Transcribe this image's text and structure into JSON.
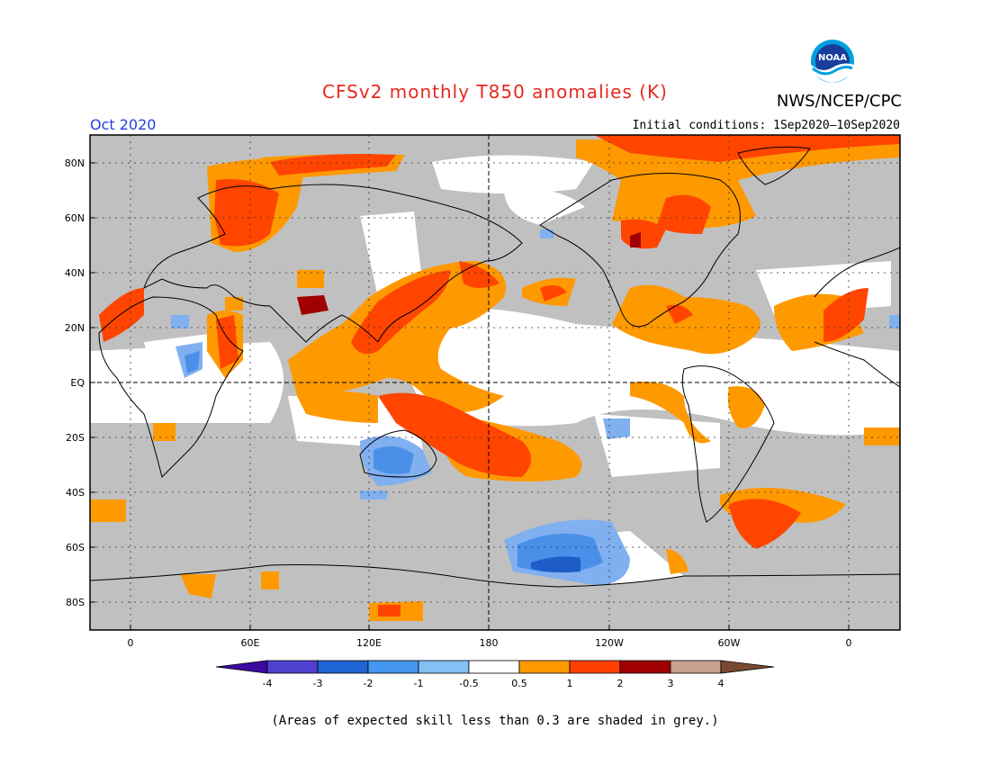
{
  "title": "CFSv2 monthly T850 anomalies (K)",
  "agency": "NWS/NCEP/CPC",
  "logo_text": "NOAA",
  "period": "Oct 2020",
  "initial_conditions": "Initial conditions: 1Sep2020–10Sep2020",
  "footnote": "(Areas of expected skill less than 0.3 are shaded in grey.)",
  "map": {
    "lat_labels": [
      "80N",
      "60N",
      "40N",
      "20N",
      "EQ",
      "20S",
      "40S",
      "60S",
      "80S"
    ],
    "lon_labels": [
      "0",
      "60E",
      "120E",
      "180",
      "120W",
      "60W",
      "0"
    ],
    "colors": {
      "skill_grey": "#c0c0c0",
      "neutral": "#ffffff",
      "pos_0_5": "#ff9900",
      "pos_1": "#ff4500",
      "pos_2": "#a00000",
      "neg_0_5": "#80b0f0",
      "neg_1": "#4a90e8",
      "neg_2": "#1e5cc8"
    }
  },
  "legend": {
    "labels": [
      "-4",
      "-3",
      "-2",
      "-1",
      "-0.5",
      "0.5",
      "1",
      "2",
      "3",
      "4"
    ],
    "colors": [
      "#3a0aa0",
      "#5040d0",
      "#1e64d2",
      "#4696f0",
      "#82bff5",
      "#ffffff",
      "#ff9900",
      "#ff4000",
      "#a00000",
      "#c8a090",
      "#7a4a30"
    ]
  }
}
